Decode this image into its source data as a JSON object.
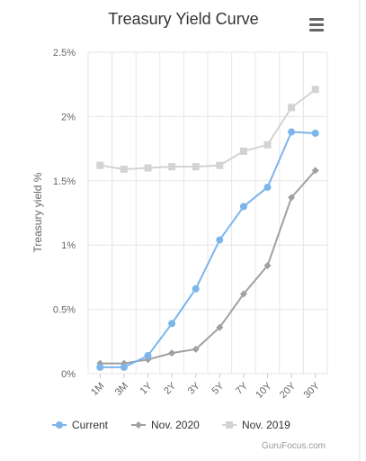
{
  "menu_icon": "hamburger-menu-icon",
  "credit": "GuruFocus.com",
  "chart_data": {
    "type": "line",
    "title": "Treasury Yield Curve",
    "xlabel": "",
    "ylabel": "Treasury yield %",
    "categories": [
      "1M",
      "3M",
      "1Y",
      "2Y",
      "3Y",
      "5Y",
      "7Y",
      "10Y",
      "20Y",
      "30Y"
    ],
    "yticks": [
      "0%",
      "0.5%",
      "1%",
      "1.5%",
      "2%",
      "2.5%"
    ],
    "ylim": [
      0,
      2.5
    ],
    "grid": true,
    "legend_position": "bottom-left",
    "series": [
      {
        "name": "Current",
        "color": "#7cb5ec",
        "marker": "circle",
        "values": [
          0.05,
          0.05,
          0.14,
          0.39,
          0.66,
          1.04,
          1.3,
          1.45,
          1.88,
          1.87
        ]
      },
      {
        "name": "Nov. 2020",
        "color": "#a0a0a0",
        "marker": "diamond",
        "values": [
          0.08,
          0.08,
          0.11,
          0.16,
          0.19,
          0.36,
          0.62,
          0.84,
          1.37,
          1.58
        ]
      },
      {
        "name": "Nov. 2019",
        "color": "#d3d3d3",
        "marker": "square",
        "values": [
          1.62,
          1.59,
          1.6,
          1.61,
          1.61,
          1.62,
          1.73,
          1.78,
          2.07,
          2.21
        ]
      }
    ]
  }
}
